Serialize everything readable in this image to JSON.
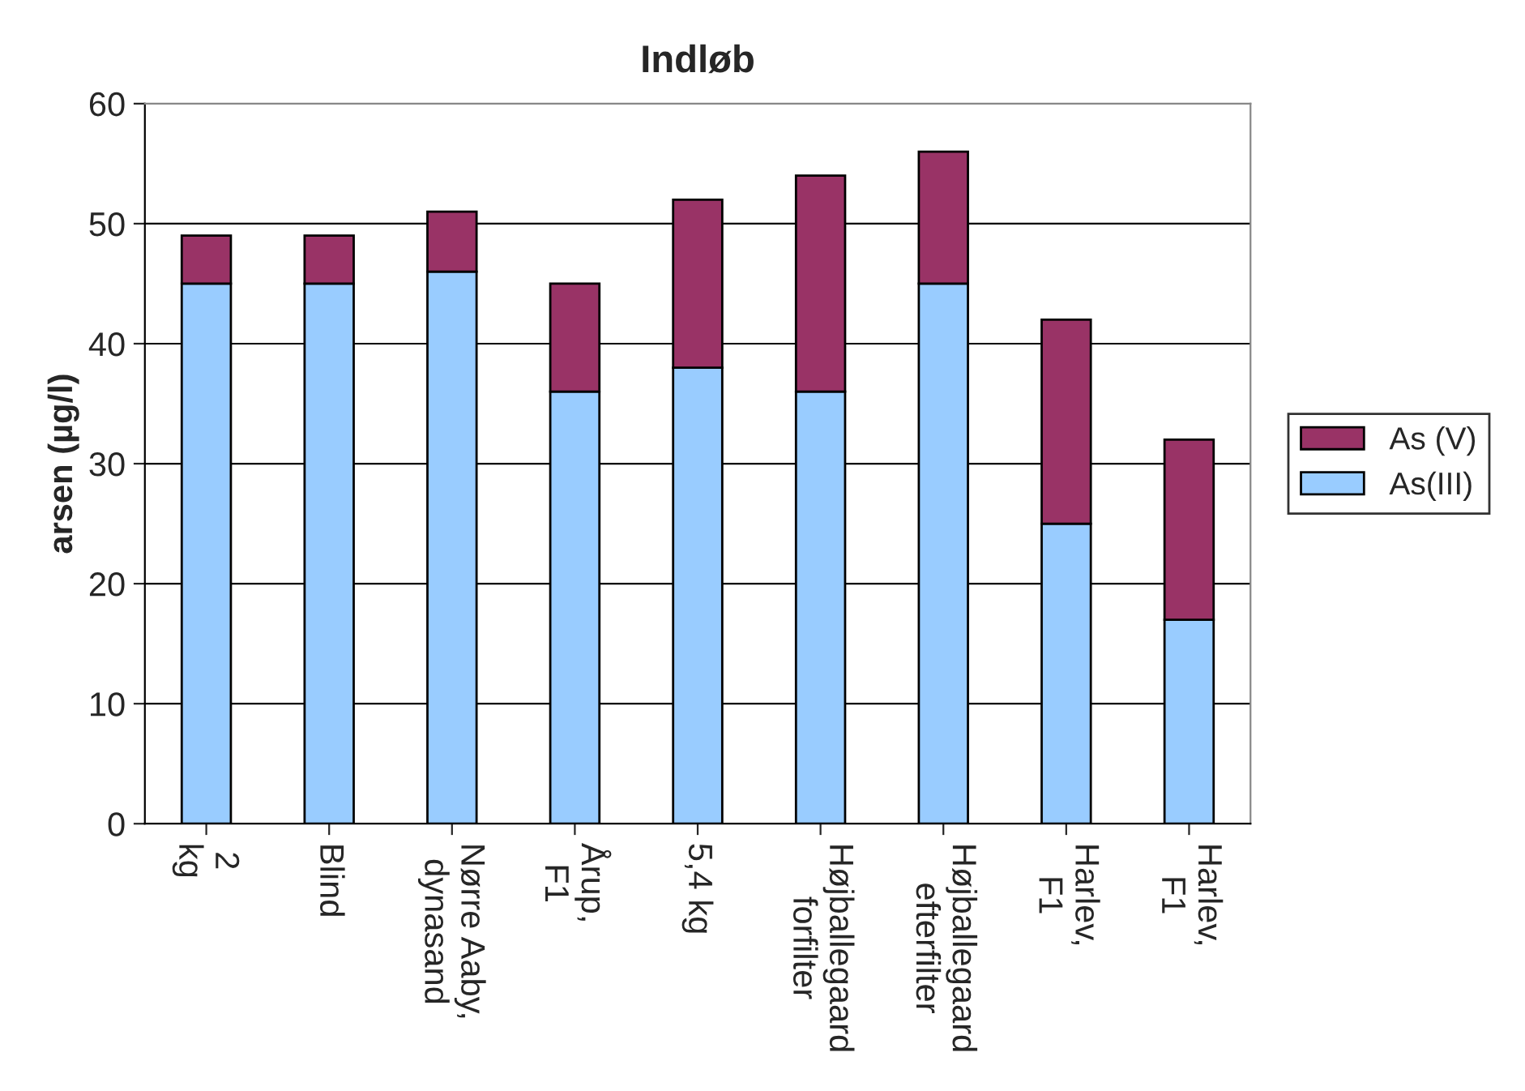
{
  "chart_data": {
    "type": "bar",
    "title": "Indløb",
    "ylabel": "arsen (µg/l)",
    "stacked": true,
    "categories": [
      "2 kg",
      "Blind",
      "Nørre Aaby, dynasand",
      "Årup, F1",
      "5,4 kg",
      "Højballegaard forfilter",
      "Højballegaard efterfilter",
      "Harlev, F1",
      "Harlev, F1"
    ],
    "series": [
      {
        "name": "As(III)",
        "color": "#99ccff",
        "values": [
          45,
          45,
          46,
          36,
          38,
          36,
          45,
          25,
          17
        ]
      },
      {
        "name": "As (V)",
        "color": "#993366",
        "values": [
          4,
          4,
          5,
          9,
          14,
          18,
          11,
          17,
          15
        ]
      }
    ],
    "ylim": [
      0,
      60
    ],
    "yticks": [
      0,
      10,
      20,
      30,
      40,
      50,
      60
    ],
    "grid": "y",
    "legend": "right"
  }
}
